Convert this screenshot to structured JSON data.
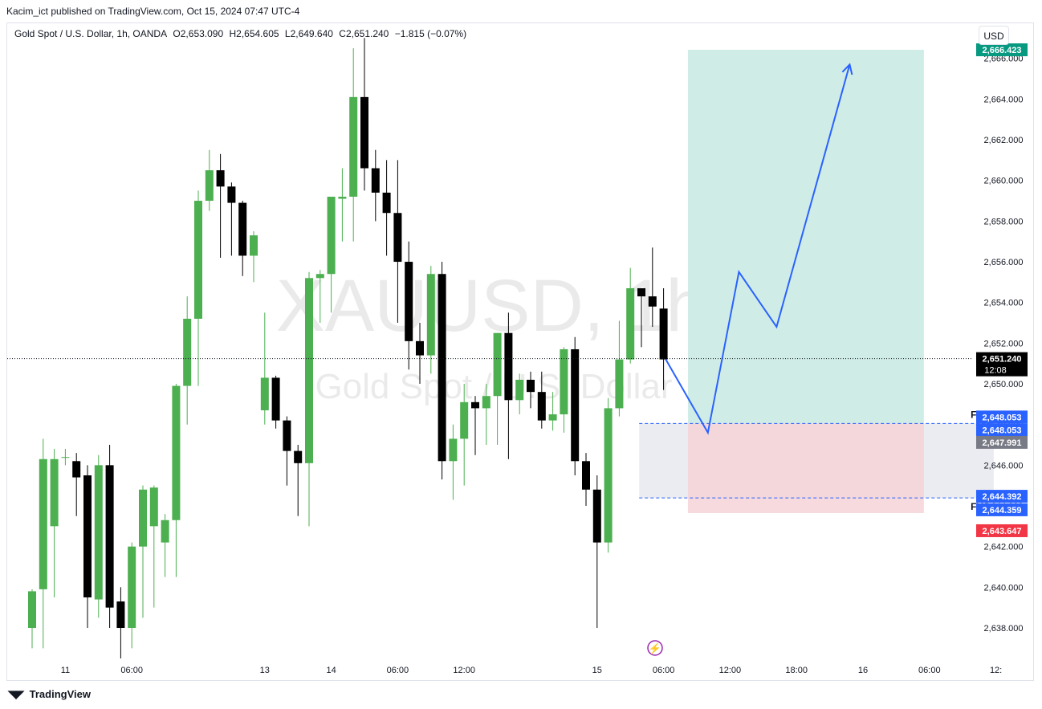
{
  "publisher_line": "Kacim_ict published on TradingView.com, Oct 15, 2024 07:47 UTC-4",
  "legend": {
    "symbol": "Gold Spot / U.S. Dollar, 1h, OANDA",
    "open": "O2,653.090",
    "high": "H2,654.605",
    "low": "L2,649.640",
    "close": "C2,651.240",
    "change": "−1.815 (−0.07%)"
  },
  "currency": "USD",
  "footer": {
    "logo": "TradingView"
  },
  "watermark": {
    "main": "XAUUSD, 1h",
    "sub": "Gold Spot / U.S. Dollar"
  },
  "colors": {
    "up": "#4caf50",
    "down": "#000000",
    "target_zone": "#d0ece6",
    "stop_zone": "#f5d3d7",
    "fvg_zone": "#e8e9ee",
    "arrow": "#2962ff",
    "target_label": "#089981",
    "stop_label": "#f23645",
    "fvg_label": "#2962ff",
    "last_price_label": "#000000"
  },
  "chart_data": {
    "type": "candlestick",
    "ylim": [
      2636.5,
      2666.7
    ],
    "y_ticks": [
      2638,
      2640,
      2642,
      2644,
      2646,
      2648,
      2650,
      2652,
      2654,
      2656,
      2658,
      2660,
      2662,
      2664,
      2666
    ],
    "y_tick_labels": [
      "2,638.000",
      "2,640.000",
      "2,642.000",
      "2,644.000",
      "2,646.000",
      "2,648.000",
      "2,650.000",
      "2,652.000",
      "2,654.000",
      "2,656.000",
      "2,658.000",
      "2,660.000",
      "2,662.000",
      "2,664.000",
      "2,666.000"
    ],
    "x_labels": [
      {
        "i": 3,
        "label": "11"
      },
      {
        "i": 9,
        "label": "06:00"
      },
      {
        "i": 21,
        "label": "13"
      },
      {
        "i": 27,
        "label": "14"
      },
      {
        "i": 33,
        "label": "06:00"
      },
      {
        "i": 39,
        "label": "12:00"
      },
      {
        "i": 51,
        "label": "15"
      },
      {
        "i": 57,
        "label": "06:00"
      },
      {
        "i": 63,
        "label": "12:00"
      },
      {
        "i": 69,
        "label": "18:00"
      },
      {
        "i": 75,
        "label": "16"
      },
      {
        "i": 81,
        "label": "06:00"
      },
      {
        "i": 87,
        "label": "12:"
      }
    ],
    "candles": [
      [
        2638.0,
        2639.8,
        2637.0,
        2639.9
      ],
      [
        2639.9,
        2646.3,
        2637.0,
        2647.3
      ],
      [
        2643.0,
        2646.3,
        2639.5,
        2646.8
      ],
      [
        2646.4,
        2646.4,
        2646.0,
        2646.8
      ],
      [
        2646.2,
        2645.4,
        2643.5,
        2646.6
      ],
      [
        2645.5,
        2639.5,
        2638.0,
        2646.0
      ],
      [
        2639.4,
        2646.0,
        2638.5,
        2646.5
      ],
      [
        2646.0,
        2639.0,
        2638.0,
        2647.0
      ],
      [
        2639.3,
        2638.0,
        2636.5,
        2640.0
      ],
      [
        2638.0,
        2642.0,
        2637.0,
        2642.2
      ],
      [
        2642.0,
        2644.8,
        2638.5,
        2645.0
      ],
      [
        2643.0,
        2644.9,
        2639.0,
        2645.0
      ],
      [
        2642.2,
        2643.3,
        2640.5,
        2643.6
      ],
      [
        2643.3,
        2649.9,
        2640.5,
        2650.0
      ],
      [
        2649.9,
        2653.2,
        2648.0,
        2654.3
      ],
      [
        2653.2,
        2659.0,
        2649.9,
        2659.5
      ],
      [
        2659.0,
        2660.5,
        2658.5,
        2661.5
      ],
      [
        2660.5,
        2659.7,
        2656.2,
        2661.3
      ],
      [
        2659.7,
        2658.9,
        2656.3,
        2659.9
      ],
      [
        2658.9,
        2656.3,
        2655.3,
        2659.0
      ],
      [
        2656.3,
        2657.3,
        2655.0,
        2657.5
      ],
      [
        2648.7,
        2650.3,
        2648.0,
        2653.5
      ],
      [
        2650.3,
        2648.2,
        2647.8,
        2650.4
      ],
      [
        2648.2,
        2646.7,
        2645.0,
        2648.4
      ],
      [
        2646.7,
        2646.1,
        2643.5,
        2647.0
      ],
      [
        2646.1,
        2655.2,
        2643.0,
        2655.5
      ],
      [
        2655.2,
        2655.4,
        2653.0,
        2655.6
      ],
      [
        2655.4,
        2659.2,
        2653.5,
        2659.2
      ],
      [
        2659.1,
        2659.2,
        2657.0,
        2660.6
      ],
      [
        2659.2,
        2664.1,
        2657.0,
        2666.5
      ],
      [
        2664.1,
        2660.6,
        2659.5,
        2667.0
      ],
      [
        2660.6,
        2659.4,
        2658.0,
        2661.5
      ],
      [
        2659.4,
        2658.4,
        2656.3,
        2661.0
      ],
      [
        2658.4,
        2656.0,
        2653.0,
        2661.0
      ],
      [
        2656.0,
        2652.1,
        2650.7,
        2657.0
      ],
      [
        2652.1,
        2651.4,
        2650.0,
        2653.0
      ],
      [
        2651.4,
        2655.4,
        2650.5,
        2655.8
      ],
      [
        2655.4,
        2646.2,
        2645.3,
        2656.0
      ],
      [
        2646.2,
        2647.3,
        2644.3,
        2648.0
      ],
      [
        2647.3,
        2649.1,
        2645.0,
        2650.0
      ],
      [
        2649.1,
        2648.8,
        2646.5,
        2649.4
      ],
      [
        2648.8,
        2649.4,
        2647.0,
        2650.0
      ],
      [
        2649.4,
        2652.5,
        2647.0,
        2652.5
      ],
      [
        2652.5,
        2649.2,
        2646.3,
        2653.5
      ],
      [
        2649.2,
        2650.2,
        2648.5,
        2650.5
      ],
      [
        2650.2,
        2649.6,
        2648.8,
        2650.6
      ],
      [
        2649.6,
        2648.2,
        2647.8,
        2650.6
      ],
      [
        2648.2,
        2648.5,
        2647.7,
        2649.6
      ],
      [
        2648.5,
        2651.7,
        2647.6,
        2651.8
      ],
      [
        2651.7,
        2646.2,
        2645.5,
        2652.3
      ],
      [
        2646.2,
        2644.8,
        2644.0,
        2646.6
      ],
      [
        2644.8,
        2642.2,
        2638.0,
        2645.5
      ],
      [
        2642.2,
        2648.8,
        2641.7,
        2649.3
      ],
      [
        2648.8,
        2651.2,
        2648.4,
        2653.1
      ],
      [
        2651.2,
        2654.7,
        2651.0,
        2655.7
      ],
      [
        2654.7,
        2654.3,
        2651.8,
        2654.6
      ],
      [
        2654.3,
        2653.8,
        2652.8,
        2656.7
      ],
      [
        2653.7,
        2651.2,
        2649.7,
        2654.7
      ]
    ],
    "position": {
      "start_i": 59.2,
      "end_i": 80.5,
      "entry": 2648.053,
      "target": 2666.423,
      "stop": 2643.647,
      "target_label": "2,666.423",
      "stop_label": "2,643.647"
    },
    "fvg": {
      "start_i": 54.8,
      "end_i": 86.8,
      "top": 2648.053,
      "bottom": 2644.392,
      "top_text": "FVG",
      "bottom_text": "FVG"
    },
    "projection_path": [
      [
        57.2,
        2651.2
      ],
      [
        61.0,
        2647.6
      ],
      [
        63.8,
        2655.5
      ],
      [
        67.2,
        2652.8
      ],
      [
        73.8,
        2665.7
      ]
    ],
    "price_labels": [
      {
        "text": "2,648.053",
        "value": 2648.053,
        "color": "#2962ff",
        "offset": -8
      },
      {
        "text": "2,648.053",
        "value": 2648.053,
        "color": "#2962ff",
        "offset": 8
      },
      {
        "text": "2,647.991",
        "value": 2647.991,
        "color": "#787b86",
        "offset": 22
      },
      {
        "text": "2,644.392",
        "value": 2644.392,
        "color": "#2962ff",
        "offset": -2
      },
      {
        "text": "2,644.359",
        "value": 2644.359,
        "color": "#2962ff",
        "offset": 14
      },
      {
        "text": "2,643.647",
        "value": 2643.647,
        "color": "#f23645",
        "offset": 22
      }
    ],
    "last_price": {
      "value": 2651.24,
      "text": "2,651.240",
      "countdown": "12:08"
    }
  }
}
